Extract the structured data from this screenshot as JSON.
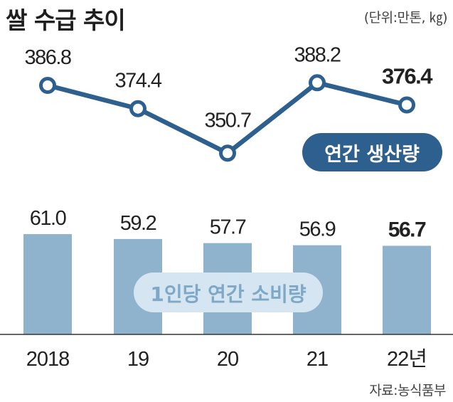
{
  "title": "쌀 수급 추이",
  "unit": "(단위:만톤, ㎏)",
  "source": "자료:농식품부",
  "colors": {
    "bar": "#8fb3cc",
    "line": "#2d5f8f",
    "pill_light": "#d5e6f2",
    "pill_light_text": "#7fa8c6",
    "text": "#222222"
  },
  "chart_data": [
    {
      "type": "line",
      "categories": [
        "2018",
        "19",
        "20",
        "21",
        "22년"
      ],
      "series": [
        {
          "name": "연간 생산량",
          "values": [
            386.8,
            374.4,
            350.7,
            388.2,
            376.4
          ]
        }
      ],
      "value_labels": [
        "386.8",
        "374.4",
        "350.7",
        "388.2",
        "376.4"
      ]
    },
    {
      "type": "bar",
      "categories": [
        "2018",
        "19",
        "20",
        "21",
        "22년"
      ],
      "series": [
        {
          "name": "1인당 연간 소비량",
          "values": [
            61.0,
            59.2,
            57.7,
            56.9,
            56.7
          ]
        }
      ],
      "value_labels": [
        "61.0",
        "59.2",
        "57.7",
        "56.9",
        "56.7"
      ]
    }
  ]
}
